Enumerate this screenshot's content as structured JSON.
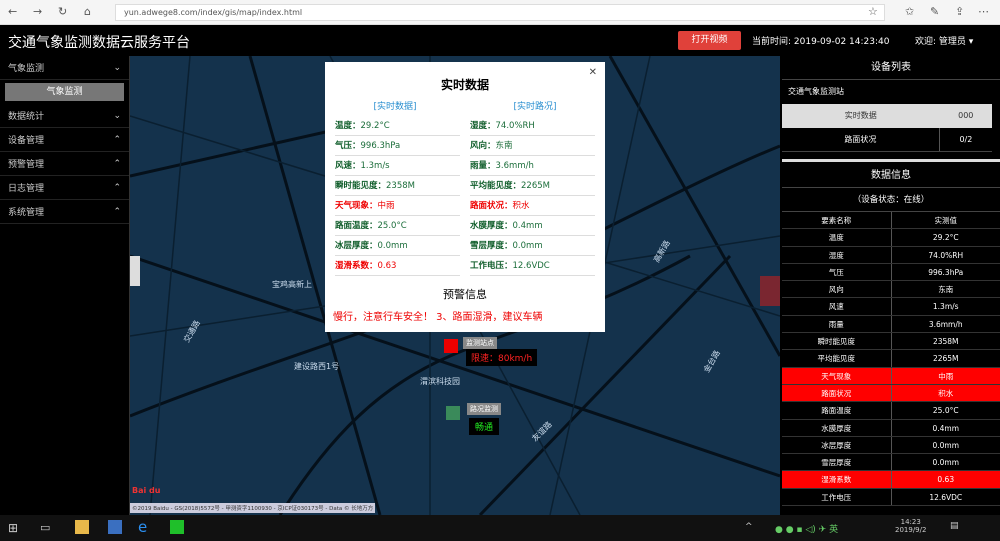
{
  "browser": {
    "url": "yun.adwege8.com/index/gis/map/index.html"
  },
  "header": {
    "title": "交通气象监测数据云服务平台",
    "video_button": "打开视频",
    "time_label": "当前时间: 2019-09-02 14:23:40",
    "user_label": "欢迎: 管理员 ▾"
  },
  "sidebar": {
    "items": [
      {
        "label": "气象监测",
        "chev": "⌄"
      },
      {
        "label": "数据统计",
        "chev": "⌄"
      },
      {
        "label": "设备管理",
        "chev": "⌃"
      },
      {
        "label": "预警管理",
        "chev": "⌃"
      },
      {
        "label": "日志管理",
        "chev": "⌃"
      },
      {
        "label": "系统管理",
        "chev": "⌃"
      }
    ],
    "sub_item": "气象监测"
  },
  "map": {
    "labels": [
      "宝鸡高新上",
      "建设路西1号",
      "渭滨科技园",
      "友谊路",
      "金台路",
      "交通路",
      "高新路"
    ],
    "marker1_name": "监测站点",
    "marker1_speed": "限速：80km/h",
    "marker2_name": "路况监测",
    "marker2_status": "畅通",
    "attribution": "©2019 Baidu - GS(2018)5572号 - 甲测资字1100930 - 京ICP证030173号 - Data © 长地万方"
  },
  "popup": {
    "title": "实时数据",
    "tab1": "[实时数据]",
    "tab2": "[实时路况]",
    "fields": [
      {
        "k": "温度：",
        "v": "29.2°C"
      },
      {
        "k": "湿度：",
        "v": "74.0%RH"
      },
      {
        "k": "气压：",
        "v": "996.3hPa"
      },
      {
        "k": "风向：",
        "v": "东南"
      },
      {
        "k": "风速：",
        "v": "1.3m/s"
      },
      {
        "k": "雨量：",
        "v": "3.6mm/h"
      },
      {
        "k": "瞬时能见度：",
        "v": "2358M"
      },
      {
        "k": "平均能见度：",
        "v": "2265M"
      },
      {
        "k": "天气现象：",
        "v": "中雨",
        "alert": true
      },
      {
        "k": "路面状况：",
        "v": "积水",
        "alert": true
      },
      {
        "k": "路面温度：",
        "v": "25.0°C"
      },
      {
        "k": "水膜厚度：",
        "v": "0.4mm"
      },
      {
        "k": "冰层厚度：",
        "v": "0.0mm"
      },
      {
        "k": "雪层厚度：",
        "v": "0.0mm"
      },
      {
        "k": "湿滑系数：",
        "v": "0.63",
        "alert": true
      },
      {
        "k": "工作电压：",
        "v": "12.6VDC"
      }
    ],
    "warning_title": "预警信息",
    "warning_text": "慢行，注意行车安全！   3、路面湿滑，建议车辆"
  },
  "device_list": {
    "title": "设备列表",
    "group": "交通气象监测站",
    "rows": [
      [
        "实时数据",
        "000"
      ],
      [
        "路面状况",
        "0/2"
      ]
    ]
  },
  "data_info": {
    "title": "数据信息",
    "status": "（设备状态：在线）",
    "headers": [
      "要素名称",
      "实测值"
    ],
    "rows": [
      [
        "温度",
        "29.2°C"
      ],
      [
        "湿度",
        "74.0%RH"
      ],
      [
        "气压",
        "996.3hPa"
      ],
      [
        "风向",
        "东南"
      ],
      [
        "风速",
        "1.3m/s"
      ],
      [
        "雨量",
        "3.6mm/h"
      ],
      [
        "瞬时能见度",
        "2358M"
      ],
      [
        "平均能见度",
        "2265M"
      ],
      [
        "天气现象",
        "中雨",
        true
      ],
      [
        "路面状况",
        "积水",
        true
      ],
      [
        "路面温度",
        "25.0°C"
      ],
      [
        "水膜厚度",
        "0.4mm"
      ],
      [
        "冰层厚度",
        "0.0mm"
      ],
      [
        "雪层厚度",
        "0.0mm"
      ],
      [
        "湿滑系数",
        "0.63",
        true
      ],
      [
        "工作电压",
        "12.6VDC"
      ]
    ]
  },
  "taskbar": {
    "time": "14:23",
    "date": "2019/9/2"
  },
  "colors": {
    "alert": "#ff0000",
    "map": "#14324c",
    "button": "#e0413a"
  }
}
